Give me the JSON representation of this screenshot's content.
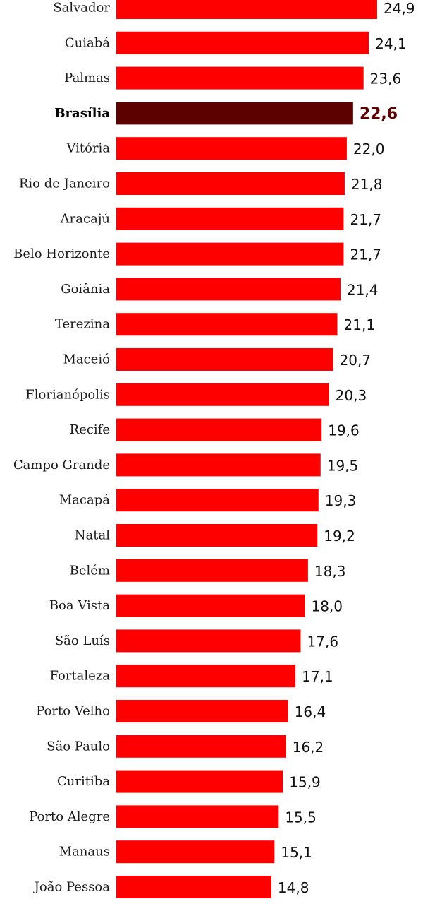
{
  "chart_data": {
    "type": "bar",
    "orientation": "horizontal",
    "categories": [
      "Salvador",
      "Cuiabá",
      "Palmas",
      "Brasília",
      "Vitória",
      "Rio de Janeiro",
      "Aracajú",
      "Belo Horizonte",
      "Goiânia",
      "Terezina",
      "Maceió",
      "Florianópolis",
      "Recife",
      "Campo Grande",
      "Macapá",
      "Natal",
      "Belém",
      "Boa Vista",
      "São Luís",
      "Fortaleza",
      "Porto Velho",
      "São Paulo",
      "Curitiba",
      "Porto Alegre",
      "Manaus",
      "João Pessoa"
    ],
    "values": [
      24.9,
      24.1,
      23.6,
      22.6,
      22.0,
      21.8,
      21.7,
      21.7,
      21.4,
      21.1,
      20.7,
      20.3,
      19.6,
      19.5,
      19.3,
      19.2,
      18.3,
      18.0,
      17.6,
      17.1,
      16.4,
      16.2,
      15.9,
      15.5,
      15.1,
      14.8
    ],
    "value_labels": [
      "24,9",
      "24,1",
      "23,6",
      "22,6",
      "22,0",
      "21,8",
      "21,7",
      "21,7",
      "21,4",
      "21,1",
      "20,7",
      "20,3",
      "19,6",
      "19,5",
      "19,3",
      "19,2",
      "18,3",
      "18,0",
      "17,6",
      "17,1",
      "16,4",
      "16,2",
      "15,9",
      "15,5",
      "15,1",
      "14,8"
    ],
    "highlight": "Brasília",
    "colors": {
      "bar": "#ff0000",
      "highlight_bar": "#5c0000",
      "highlight_text": "#5c0000"
    },
    "xlim": [
      0,
      24.9
    ],
    "grid": false,
    "legend": "none"
  }
}
